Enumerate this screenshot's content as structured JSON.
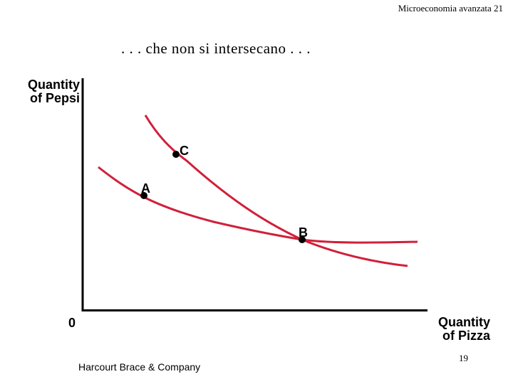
{
  "header": {
    "text": "Microeconomia avanzata 21"
  },
  "slide": {
    "title": ". . . che non si intersecano . . ."
  },
  "axes": {
    "y_label_line1": "Quantity",
    "y_label_line2": "of Pepsi",
    "x_label_line1": "Quantity",
    "x_label_line2": "of Pizza",
    "origin": "0"
  },
  "points": {
    "a": "A",
    "b": "B",
    "c": "C"
  },
  "curves": {
    "color": "#d0203a"
  },
  "footer": {
    "publisher": "Harcourt Brace & Company",
    "page_number": "19"
  }
}
